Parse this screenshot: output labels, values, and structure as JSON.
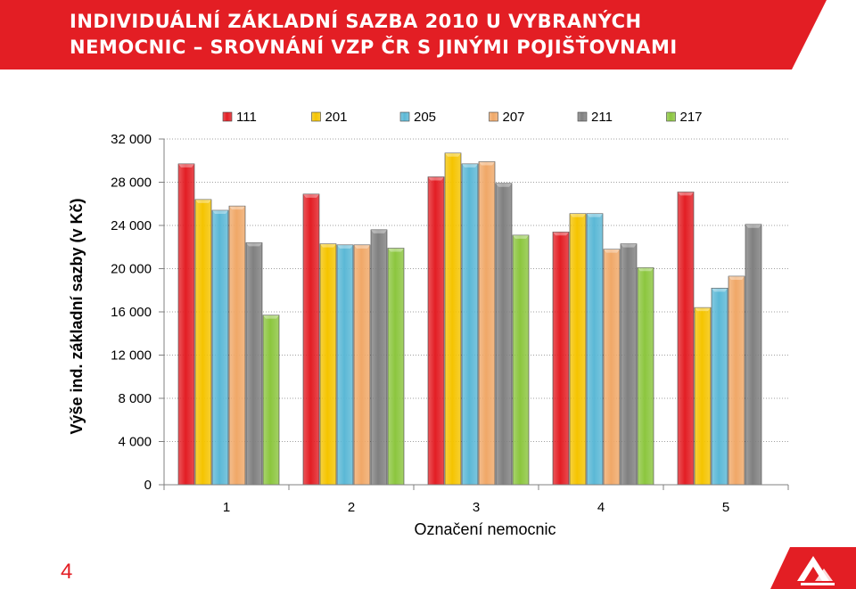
{
  "title": {
    "line1": "INDIVIDUÁLNÍ ZÁKLADNÍ SAZBA 2010 U VYBRANÝCH",
    "line2": "NEMOCNIC – SROVNÁNÍ VZP ČR S JINÝMI POJIŠŤOVNAMI"
  },
  "page_number": "4",
  "colors": {
    "banner": "#e31e24",
    "accent": "#e31e24"
  },
  "chart_data": {
    "type": "bar",
    "xlabel": "Označení nemocnic",
    "ylabel": "Výše ind. základní sazby (v Kč)",
    "categories": [
      "1",
      "2",
      "3",
      "4",
      "5"
    ],
    "ylim": [
      0,
      32000
    ],
    "yticks": [
      0,
      4000,
      8000,
      12000,
      16000,
      20000,
      24000,
      28000,
      32000
    ],
    "ytick_labels": [
      "0",
      "4 000",
      "8 000",
      "12 000",
      "16 000",
      "20 000",
      "24 000",
      "28 000",
      "32 000"
    ],
    "grid": true,
    "legend_position": "top",
    "series": [
      {
        "name": "111",
        "color": "#e31e24",
        "values": [
          29700,
          26900,
          28500,
          23400,
          27100
        ]
      },
      {
        "name": "201",
        "color": "#f5c400",
        "values": [
          26400,
          22300,
          30700,
          25100,
          16400
        ]
      },
      {
        "name": "205",
        "color": "#5bb8d6",
        "values": [
          25400,
          22200,
          29700,
          25100,
          18200
        ]
      },
      {
        "name": "207",
        "color": "#f0a868",
        "values": [
          25800,
          22200,
          29900,
          21800,
          19300
        ]
      },
      {
        "name": "211",
        "color": "#808080",
        "values": [
          22400,
          23600,
          27900,
          22300,
          24100
        ]
      },
      {
        "name": "217",
        "color": "#8cc63f",
        "values": [
          15700,
          21900,
          23100,
          20100,
          null
        ]
      }
    ]
  }
}
